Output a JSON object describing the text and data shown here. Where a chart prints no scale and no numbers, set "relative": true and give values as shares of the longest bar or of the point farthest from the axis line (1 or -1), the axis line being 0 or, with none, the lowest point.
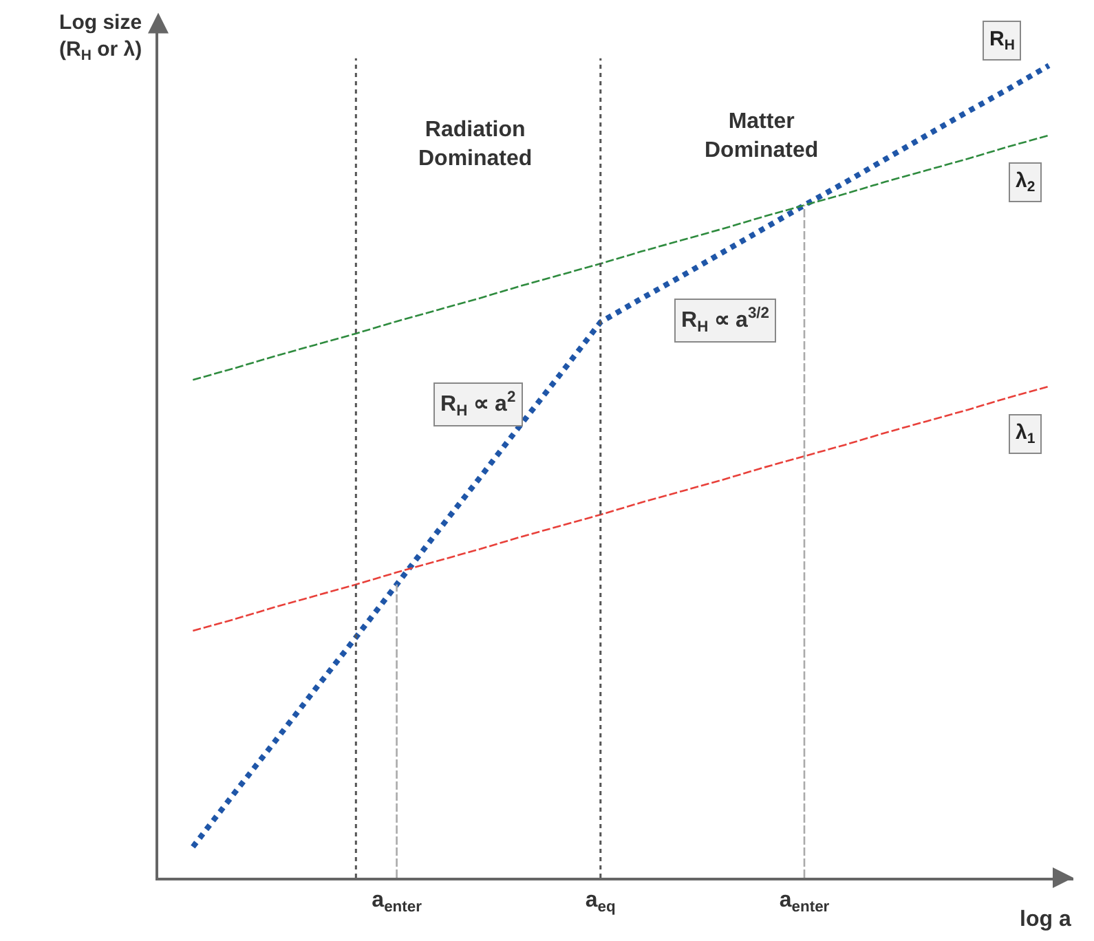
{
  "chart_data": {
    "type": "line",
    "relative": true,
    "ylabel": "Log size\n(R$_{H}$ or λ)",
    "xlabel": "log a",
    "categories": [
      null,
      null,
      null,
      null,
      null,
      "a$_{enter}$",
      null,
      null,
      null,
      null,
      "a$_{eq}$",
      null,
      null,
      null,
      null,
      "a$_{enter}$",
      null,
      null,
      null,
      null,
      null,
      null
    ],
    "ylim": [
      0,
      1.04
    ],
    "legend": false,
    "tick_labels": "x",
    "series": [
      {
        "name": "R$_{H}$",
        "color": "#1f56a8",
        "line_style": "dotted",
        "values": [
          0.038,
          0.103,
          0.167,
          0.232,
          0.296,
          0.361,
          0.426,
          0.49,
          0.555,
          0.619,
          0.684,
          0.713,
          0.741,
          0.77,
          0.799,
          0.828,
          0.856,
          0.885,
          0.914,
          0.943,
          0.971,
          1.0
        ]
      },
      {
        "name": "λ$_{2}$",
        "color": "#2e8b3e",
        "line_style": "dashed",
        "values": [
          0.613,
          0.627,
          0.642,
          0.656,
          0.67,
          0.685,
          0.699,
          0.713,
          0.728,
          0.742,
          0.756,
          0.771,
          0.785,
          0.799,
          0.814,
          0.828,
          0.842,
          0.857,
          0.871,
          0.885,
          0.9,
          0.914
        ]
      },
      {
        "name": "λ$_{1}$",
        "color": "#e8403a",
        "line_style": "dashed",
        "values": [
          0.304,
          0.318,
          0.333,
          0.347,
          0.361,
          0.376,
          0.39,
          0.404,
          0.419,
          0.433,
          0.447,
          0.462,
          0.476,
          0.49,
          0.505,
          0.519,
          0.533,
          0.548,
          0.562,
          0.576,
          0.591,
          0.605
        ]
      }
    ],
    "ref_lines": [
      {
        "axis": "x",
        "value": "a$_{eq}$",
        "color": "#555555",
        "line_style": "dotted"
      },
      {
        "axis": "x",
        "value": "a$_{enter}$",
        "color": "#aaaaaa",
        "line_style": "dashed"
      }
    ],
    "annotations": [
      "Radiation\nDominated",
      "Matter\nDominated",
      "R$_{H}$ ∝ a$^{2}$",
      "R$_{H}$ ∝ a$^{3/2}$"
    ]
  }
}
